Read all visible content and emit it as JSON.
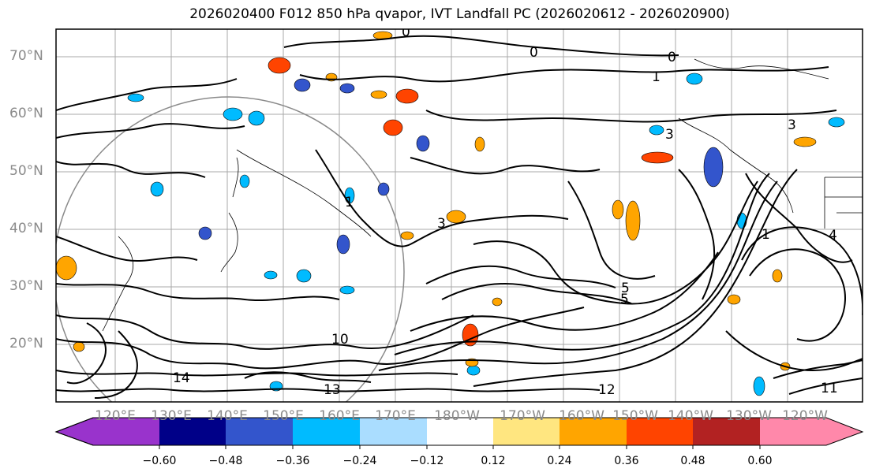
{
  "title": "2026020400 F012 850 hPa qvapor, IVT Landfall PC (2026020612 - 2026020900)",
  "map": {
    "lat_labels": [
      "70°N",
      "60°N",
      "50°N",
      "40°N",
      "30°N",
      "20°N"
    ],
    "lon_labels": [
      "120°E",
      "130°E",
      "140°E",
      "150°E",
      "160°E",
      "170°E",
      "180°W",
      "170°W",
      "160°W",
      "150°W",
      "140°W",
      "130°W",
      "120°W"
    ],
    "contour_labels": [
      "0",
      "0",
      "0",
      "1",
      "1",
      "1",
      "3",
      "3",
      "3",
      "4",
      "5",
      "5",
      "10",
      "11",
      "13",
      "14",
      "12"
    ]
  },
  "colorbar": {
    "colors": [
      "#9933cc",
      "#000088",
      "#3355cc",
      "#00bbff",
      "#aaddff",
      "#ffffff",
      "#ffe680",
      "#ffa500",
      "#ff4400",
      "#b22222",
      "#ff88aa"
    ],
    "ticks": [
      "−0.60",
      "−0.48",
      "−0.36",
      "−0.24",
      "−0.12",
      "0.12",
      "0.24",
      "0.36",
      "0.48",
      "0.60"
    ]
  }
}
